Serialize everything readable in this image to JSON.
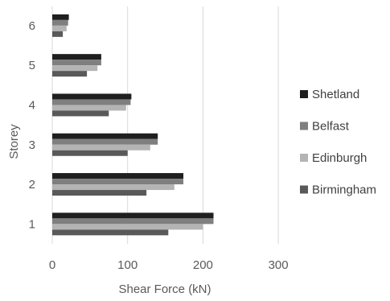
{
  "chart_data": {
    "type": "bar",
    "orientation": "horizontal",
    "categories": [
      "1",
      "2",
      "3",
      "4",
      "5",
      "6"
    ],
    "series": [
      {
        "name": "Shetland",
        "color": "#1f1f1f",
        "values": [
          214,
          174,
          140,
          105,
          65,
          22
        ]
      },
      {
        "name": "Belfast",
        "color": "#7f7f7f",
        "values": [
          214,
          174,
          140,
          104,
          65,
          21
        ]
      },
      {
        "name": "Edinburgh",
        "color": "#b4b4b4",
        "values": [
          200,
          162,
          130,
          98,
          60,
          19
        ]
      },
      {
        "name": "Birmingham",
        "color": "#595959",
        "values": [
          154,
          125,
          100,
          75,
          46,
          14
        ]
      }
    ],
    "xlabel": "Shear Force (kN)",
    "ylabel": "Storey",
    "xlim": [
      0,
      300
    ],
    "xticks": [
      0,
      100,
      200,
      300
    ],
    "grid": true,
    "legend_position": "right"
  }
}
